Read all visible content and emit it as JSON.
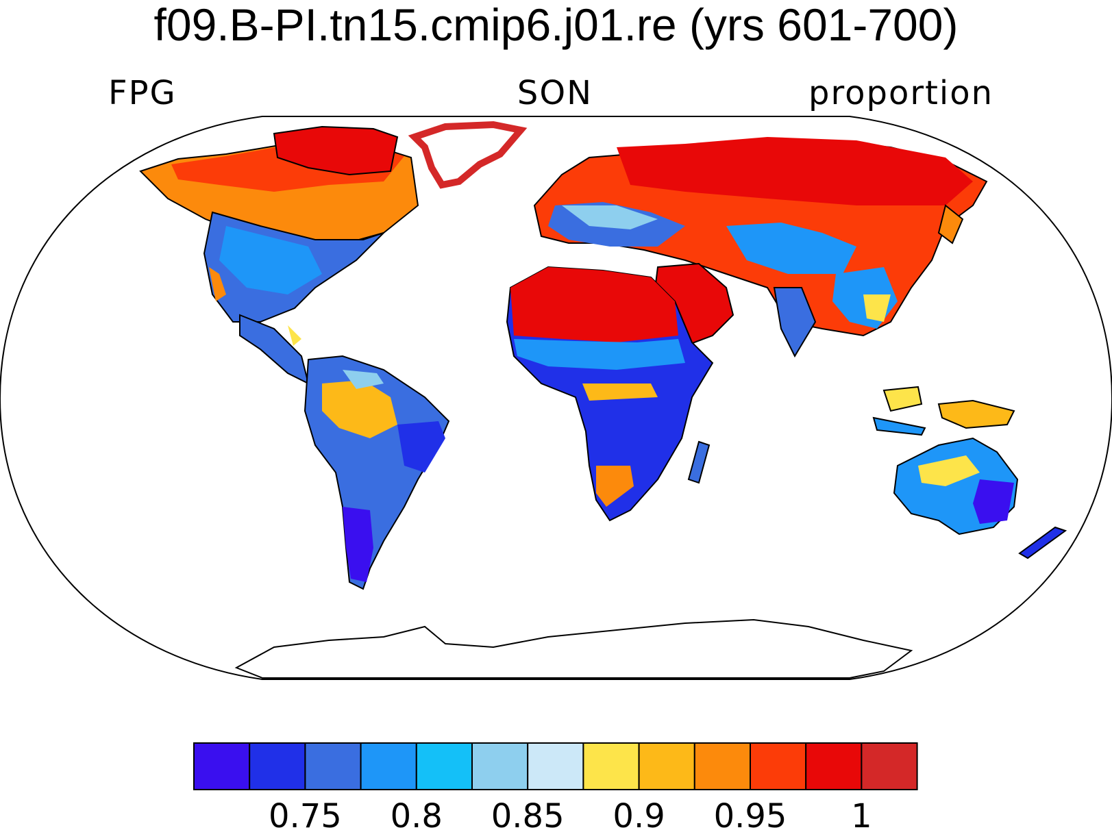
{
  "title": "f09.B-PI.tn15.cmip6.j01.re (yrs 601-700)",
  "left_label": "FPG",
  "center_label": "SON",
  "right_label": "proportion",
  "colorbar": {
    "colors": [
      "#3a0fef",
      "#2030e8",
      "#3a6ee0",
      "#1e96f8",
      "#14c0f8",
      "#8ecfee",
      "#cce8f8",
      "#fde44a",
      "#fdb918",
      "#fc8a0c",
      "#fc3c08",
      "#e80808",
      "#d42828"
    ],
    "tick_labels": [
      "0.75",
      "0.8",
      "0.85",
      "0.9",
      "0.95",
      "1"
    ]
  }
}
